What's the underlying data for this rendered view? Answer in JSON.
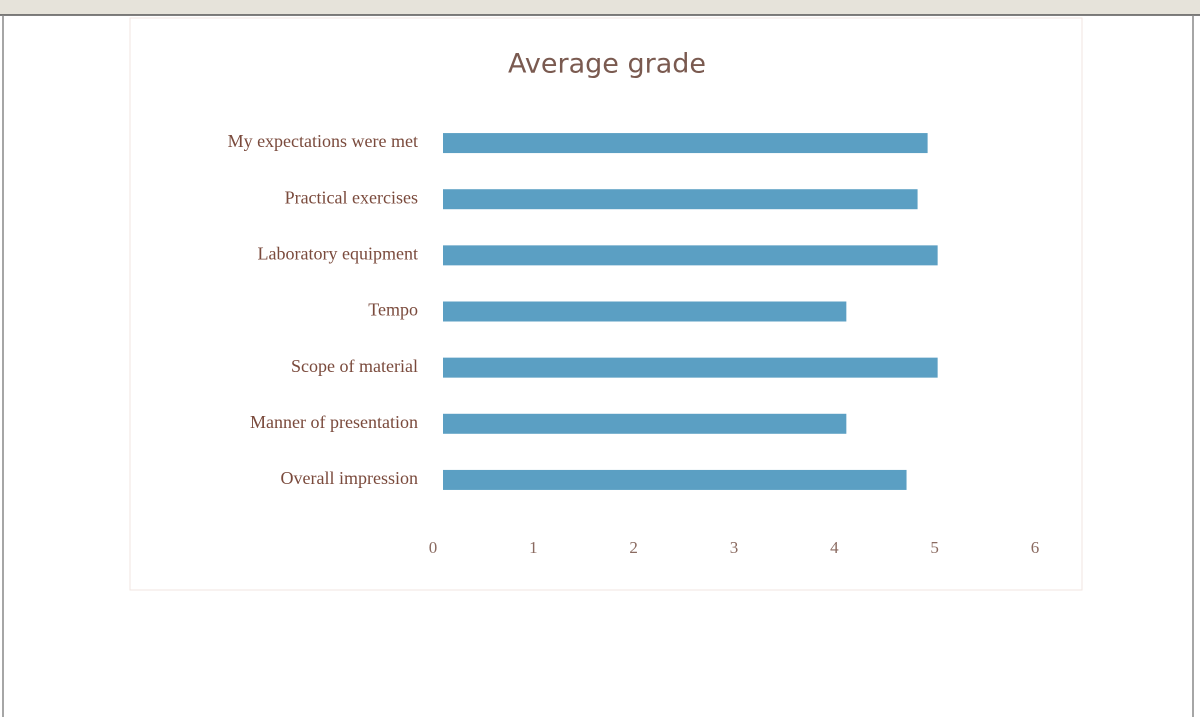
{
  "chart_data": {
    "type": "hbar",
    "title": "Average grade",
    "categories": [
      "My expectations were met",
      "Practical exercises",
      "Laboratory equipment",
      "Tempo",
      "Scope of material",
      "Manner of presentation",
      "Overall impression"
    ],
    "values": [
      4.83,
      4.73,
      4.93,
      4.02,
      4.93,
      4.02,
      4.62
    ],
    "color": "#5b9fc3",
    "xlim": [
      0,
      6
    ],
    "xticks": [
      0,
      1,
      2,
      3,
      4,
      5,
      6
    ],
    "grid": false
  }
}
